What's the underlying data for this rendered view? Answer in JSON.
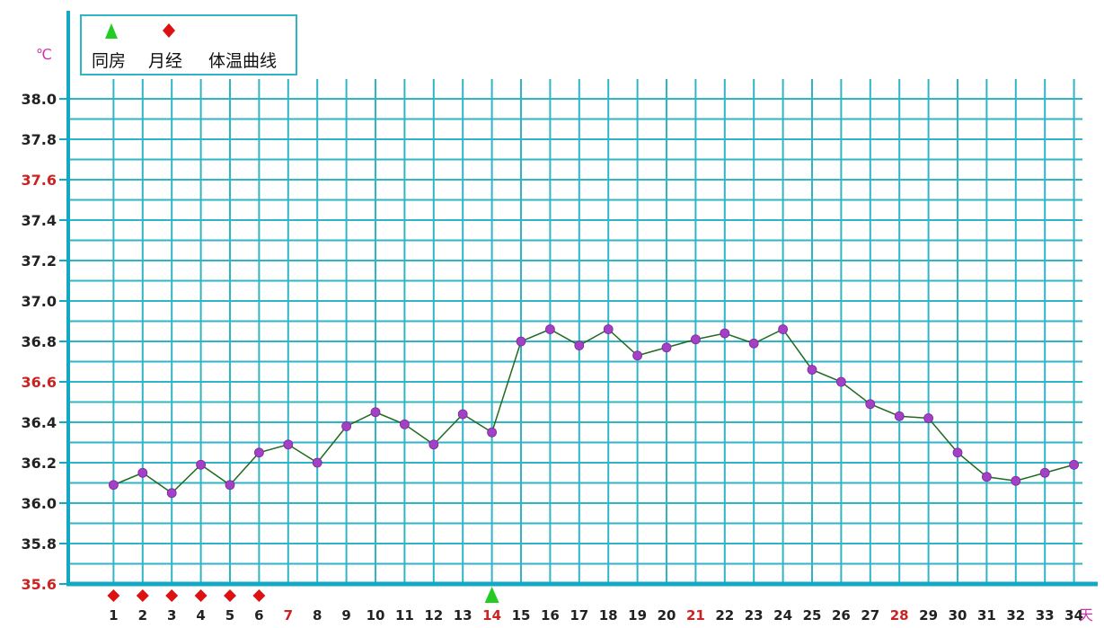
{
  "chart_data": {
    "type": "line",
    "y_unit": "℃",
    "x_unit": "天",
    "legend": {
      "position": "top-left",
      "items": [
        {
          "label": "同房",
          "marker": "triangle",
          "color": "#22cc22"
        },
        {
          "label": "月经",
          "marker": "diamond",
          "color": "#dd1111"
        },
        {
          "label": "体温曲线",
          "marker": "line",
          "color": "#006600"
        }
      ]
    },
    "ylim": [
      35.6,
      38.0
    ],
    "y_ticks": [
      {
        "label": "38.0",
        "value": 38.0,
        "highlight": false
      },
      {
        "label": "37.8",
        "value": 37.8,
        "highlight": false
      },
      {
        "label": "37.6",
        "value": 37.6,
        "highlight": true
      },
      {
        "label": "37.4",
        "value": 37.4,
        "highlight": false
      },
      {
        "label": "37.2",
        "value": 37.2,
        "highlight": false
      },
      {
        "label": "37.0",
        "value": 37.0,
        "highlight": false
      },
      {
        "label": "36.8",
        "value": 36.8,
        "highlight": false
      },
      {
        "label": "36.6",
        "value": 36.6,
        "highlight": true
      },
      {
        "label": "36.4",
        "value": 36.4,
        "highlight": false
      },
      {
        "label": "36.2",
        "value": 36.2,
        "highlight": false
      },
      {
        "label": "36.0",
        "value": 36.0,
        "highlight": false
      },
      {
        "label": "35.8",
        "value": 35.8,
        "highlight": false
      },
      {
        "label": "35.6",
        "value": 35.6,
        "highlight": true
      }
    ],
    "x": [
      1,
      2,
      3,
      4,
      5,
      6,
      7,
      8,
      9,
      10,
      11,
      12,
      13,
      14,
      15,
      16,
      17,
      18,
      19,
      20,
      21,
      22,
      23,
      24,
      25,
      26,
      27,
      28,
      29,
      30,
      31,
      32,
      33,
      34
    ],
    "x_highlight": [
      7,
      14,
      21,
      28
    ],
    "series": [
      {
        "name": "体温曲线",
        "values": [
          36.09,
          36.15,
          36.05,
          36.19,
          36.09,
          36.25,
          36.29,
          36.2,
          36.38,
          36.45,
          36.39,
          36.29,
          36.44,
          36.35,
          36.8,
          36.86,
          36.78,
          36.86,
          36.73,
          36.77,
          36.81,
          36.84,
          36.79,
          36.86,
          36.66,
          36.6,
          36.49,
          36.43,
          36.42,
          36.25,
          36.13,
          36.11,
          36.15,
          36.19
        ]
      }
    ],
    "events": {
      "同房": [
        14
      ],
      "月经": [
        1,
        2,
        3,
        4,
        5,
        6
      ]
    },
    "grid": true,
    "colors": {
      "grid": "#2fb6c6",
      "axis": "#14a9c3",
      "line": "#1e6b1e",
      "marker": "#a340c6",
      "tick_text": "#222222",
      "highlight_text": "#cc2222",
      "unit_text": "#cc33aa"
    }
  }
}
